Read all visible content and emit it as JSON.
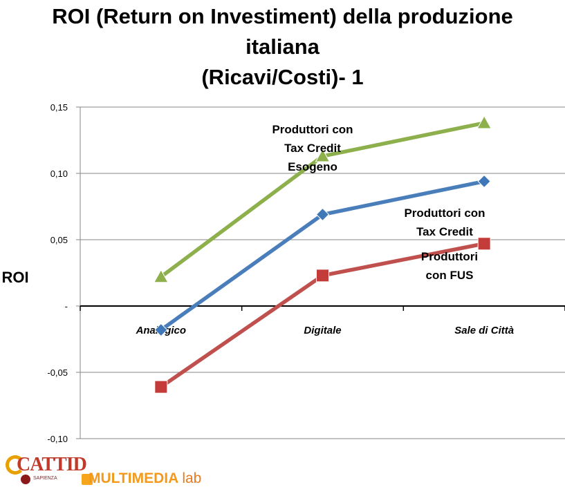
{
  "chart_data": {
    "type": "line",
    "title_lines": [
      "ROI (Return on Investiment) della produzione",
      "italiana",
      "(Ricavi/Costi)- 1"
    ],
    "ylabel": "ROI",
    "xlabel": "",
    "categories": [
      "Analogico",
      "Digitale",
      "Sale di Città"
    ],
    "ylim": [
      -0.1,
      0.15
    ],
    "yticks": [
      {
        "value": 0.15,
        "label": "0,15"
      },
      {
        "value": 0.1,
        "label": "0,10"
      },
      {
        "value": 0.05,
        "label": "0,05"
      },
      {
        "value": 0,
        "label": "-"
      },
      {
        "value": -0.05,
        "label": "-0,05"
      },
      {
        "value": -0.1,
        "label": "-0,10"
      }
    ],
    "grid": true,
    "series": [
      {
        "key": "green",
        "color": "#8db04c",
        "stroke": "#8db04c",
        "marker": "triangle",
        "values": [
          0.022,
          0.113,
          0.138
        ]
      },
      {
        "key": "blue",
        "color": "#3f78b9",
        "stroke": "#4a7ebb",
        "marker": "diamond",
        "values": [
          -0.018,
          0.069,
          0.094
        ]
      },
      {
        "key": "red",
        "color": "#c43c3a",
        "stroke": "#c0504d",
        "marker": "square",
        "values": [
          -0.061,
          0.023,
          0.047
        ]
      }
    ],
    "annotations": [
      {
        "series": "green",
        "lines": [
          "Produttori con",
          "Tax Credit",
          "Esogeno"
        ]
      },
      {
        "series": "blue",
        "lines": [
          "Produttori con",
          "Tax Credit"
        ]
      },
      {
        "series": "red",
        "lines": [
          "Produttori",
          "con FUS"
        ]
      }
    ]
  },
  "logos": {
    "cattid": "CATTID",
    "cattid_sub": "SAPIENZA",
    "multimedia": "MULTIMEDIA",
    "lab": "lab"
  }
}
